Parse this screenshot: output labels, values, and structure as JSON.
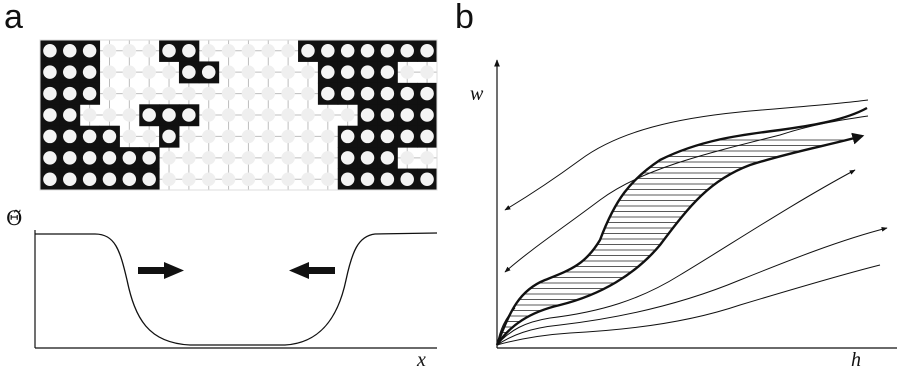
{
  "panels": {
    "a": {
      "letter": "a",
      "theta_label": "Θ̃",
      "x_label": "x"
    },
    "b": {
      "letter": "b",
      "y_label": "w",
      "x_label": "h"
    }
  },
  "lattice": {
    "rows": 7,
    "cols": 20,
    "colors": {
      "occupied": "#111111",
      "empty": "#efefef",
      "grid": "#bdbdbd"
    },
    "occupied_map": [
      "11100011000001111111",
      "11100001100000111100",
      "11100000000000111111",
      "11000111000000001111",
      "11110010000000011111",
      "11111100000000011100",
      "11111100000000011111"
    ]
  },
  "profile": {
    "description_points_note": "",
    "arrows": [
      "right",
      "left"
    ]
  }
}
